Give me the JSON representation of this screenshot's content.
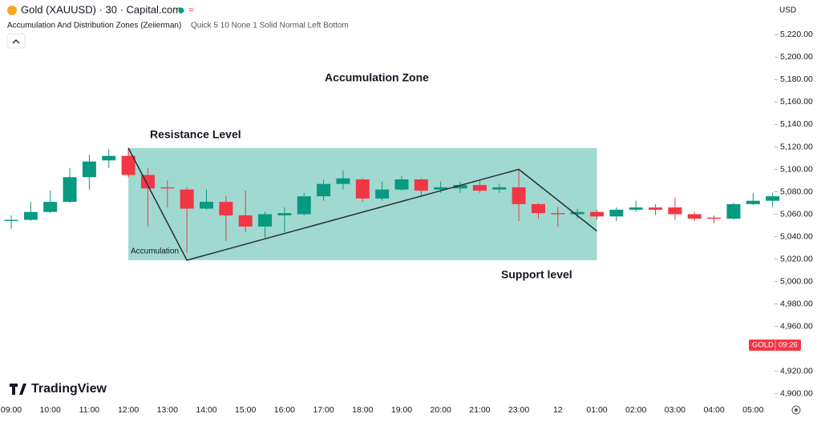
{
  "header": {
    "symbol": "Gold (XAUUSD) · 30 · Capital.com",
    "indicator_name": "Accumulation And Distribution Zones (Zeiierman)",
    "indicator_params": "Quick 5 10 None 1 Solid Normal Left Bottom",
    "currency": "USD",
    "logo": "TradingView",
    "price_tag": {
      "symbol": "GOLD",
      "countdown": "09:26"
    }
  },
  "chart_data": {
    "type": "candlestick",
    "categories": [
      "09:00",
      null,
      "10:00",
      null,
      "11:00",
      null,
      "12:00",
      null,
      "13:00",
      null,
      "14:00",
      null,
      "15:00",
      null,
      "16:00",
      null,
      "17:00",
      null,
      "18:00",
      null,
      "19:00",
      null,
      "20:00",
      null,
      "21:00",
      null,
      "23:00",
      null,
      "12",
      null,
      "01:00",
      null,
      "02:00",
      null,
      "03:00",
      null,
      "04:00",
      null,
      "05:00",
      null
    ],
    "open": [
      5054,
      5055,
      5062,
      5071,
      5093,
      5108,
      5112,
      5095,
      5084,
      5082,
      5065,
      5071,
      5059,
      5049,
      5059,
      5060,
      5076,
      5087,
      5091,
      5074,
      5082,
      5091,
      5082,
      5083,
      5086,
      5082,
      5084,
      5069,
      5061,
      5060,
      5062,
      5058,
      5064,
      5066,
      5066,
      5060,
      5057,
      5056,
      5069,
      5072
    ],
    "high": [
      5059,
      5071,
      5081,
      5101,
      5113,
      5118,
      5119,
      5101,
      5090,
      5084,
      5082,
      5076,
      5081,
      5062,
      5066,
      5079,
      5091,
      5099,
      5092,
      5089,
      5094,
      5092,
      5089,
      5089,
      5091,
      5087,
      5099,
      5070,
      5067,
      5065,
      5064,
      5066,
      5072,
      5069,
      5075,
      5062,
      5059,
      5070,
      5079,
      5079
    ],
    "low": [
      5047,
      5054,
      5061,
      5070,
      5082,
      5101,
      5093,
      5049,
      5066,
      5026,
      5064,
      5036,
      5044,
      5039,
      5044,
      5059,
      5072,
      5082,
      5071,
      5072,
      5081,
      5076,
      5079,
      5079,
      5079,
      5079,
      5054,
      5056,
      5049,
      5056,
      5055,
      5054,
      5062,
      5059,
      5055,
      5054,
      5052,
      5055,
      5068,
      5066
    ],
    "close": [
      5055,
      5062,
      5071,
      5093,
      5107,
      5112,
      5095,
      5083,
      5083,
      5065,
      5071,
      5059,
      5049,
      5060,
      5061,
      5076,
      5087,
      5092,
      5074,
      5082,
      5091,
      5081,
      5084,
      5086,
      5081,
      5084,
      5069,
      5061,
      5060,
      5062,
      5058,
      5064,
      5066,
      5064,
      5060,
      5056,
      5056,
      5069,
      5072,
      5076
    ],
    "up_color": "#089981",
    "down_color": "#f23645",
    "ylim": [
      4894,
      5251
    ],
    "yticks": [
      {
        "value": 4900,
        "label": "4,900.00"
      },
      {
        "value": 4920,
        "label": "4,920.00"
      },
      {
        "value": 4960,
        "label": "4,960.00"
      },
      {
        "value": 4980,
        "label": "4,980.00"
      },
      {
        "value": 5000,
        "label": "5,000.00"
      },
      {
        "value": 5020,
        "label": "5,020.00"
      },
      {
        "value": 5040,
        "label": "5,040.00"
      },
      {
        "value": 5060,
        "label": "5,060.00"
      },
      {
        "value": 5080,
        "label": "5,080.00"
      },
      {
        "value": 5100,
        "label": "5,100.00"
      },
      {
        "value": 5120,
        "label": "5,120.00"
      },
      {
        "value": 5140,
        "label": "5,140.00"
      },
      {
        "value": 5160,
        "label": "5,160.00"
      },
      {
        "value": 5180,
        "label": "5,180.00"
      },
      {
        "value": 5200,
        "label": "5,200.00"
      },
      {
        "value": 5220,
        "label": "5,220.00"
      }
    ],
    "zone": {
      "start_index": 6,
      "end_index": 30,
      "top": 5119,
      "bottom": 5019,
      "color": "#a0d9cf"
    },
    "trend_line": {
      "index": [
        6,
        9,
        26,
        30
      ],
      "values": [
        5119,
        5019,
        5100,
        5045
      ],
      "color": "#2a2e39"
    },
    "annotations": [
      "Accumulation Zone",
      "Resistance Level",
      "Accumulation",
      "Support level"
    ]
  }
}
